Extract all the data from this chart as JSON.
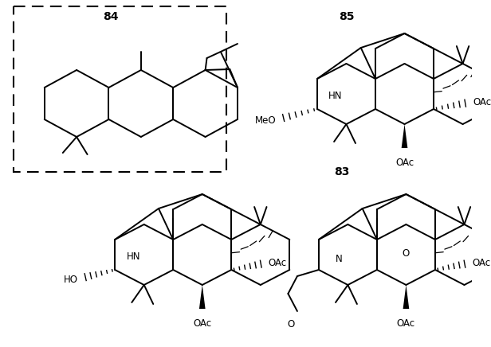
{
  "background_color": "#ffffff",
  "line_color": "#000000",
  "line_width": 1.4,
  "fig_width": 6.16,
  "fig_height": 4.36,
  "dpi": 100,
  "label_83": [
    0.725,
    0.495
  ],
  "label_84": [
    0.235,
    0.048
  ],
  "label_85": [
    0.735,
    0.048
  ],
  "label_fontsize": 10,
  "text_fontsize": 8.5
}
